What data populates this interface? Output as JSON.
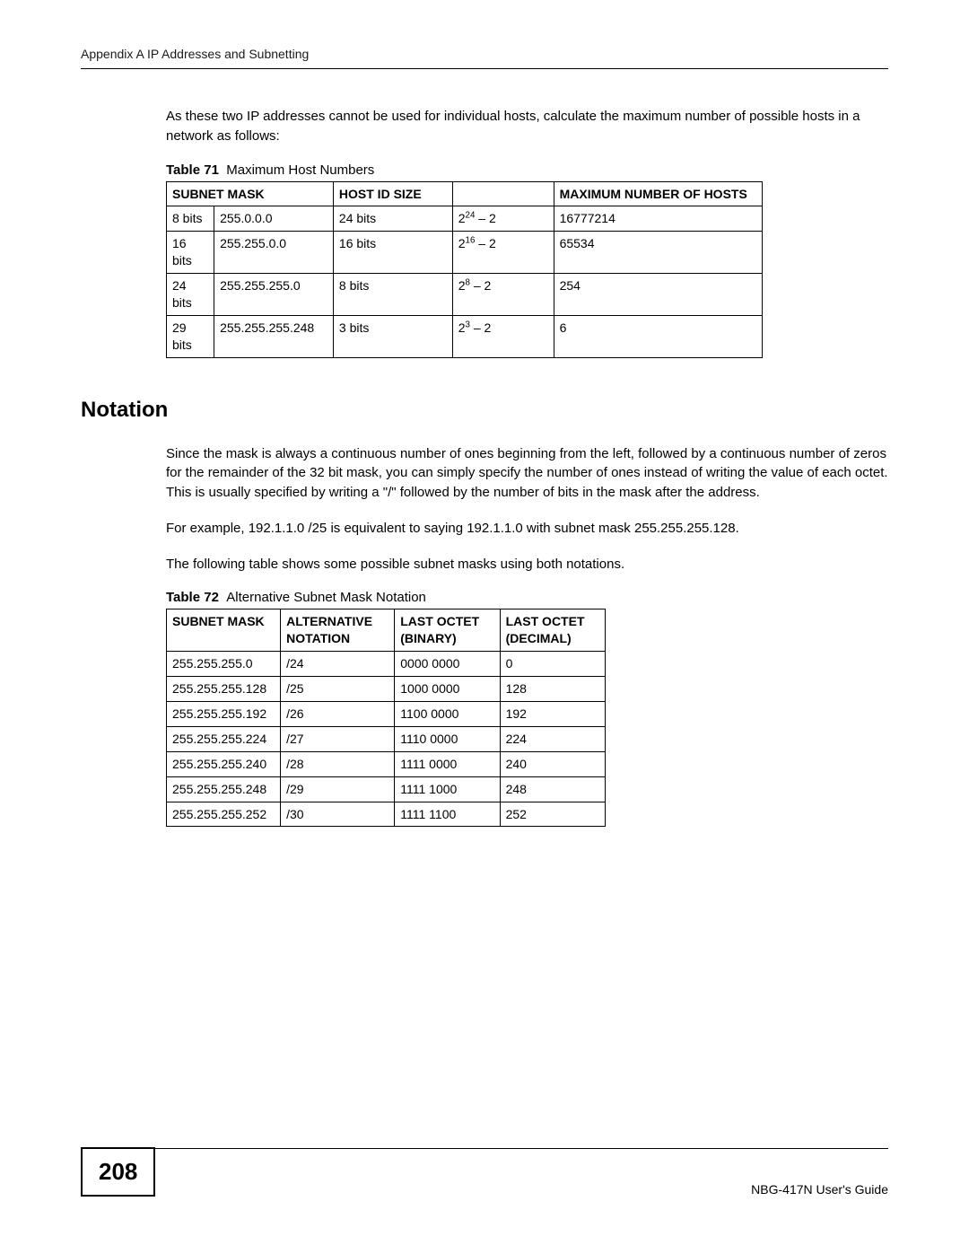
{
  "header": "Appendix A IP Addresses and Subnetting",
  "intro_para": "As these two IP addresses cannot be used for individual hosts, calculate the maximum number of possible hosts in a network as follows:",
  "table71": {
    "label": "Table 71",
    "title": "Maximum Host Numbers",
    "headers": [
      "SUBNET MASK",
      "HOST ID SIZE",
      "",
      "MAXIMUM NUMBER OF HOSTS"
    ],
    "col_widths": [
      "8%",
      "20%",
      "20%",
      "17%",
      "35%"
    ],
    "rows": [
      {
        "bits": "8 bits",
        "mask": "255.0.0.0",
        "hostid": "24 bits",
        "exp": "24",
        "maxhosts": "16777214"
      },
      {
        "bits": "16 bits",
        "mask": "255.255.0.0",
        "hostid": "16 bits",
        "exp": "16",
        "maxhosts": "65534"
      },
      {
        "bits": "24 bits",
        "mask": "255.255.255.0",
        "hostid": "8 bits",
        "exp": "8",
        "maxhosts": "254"
      },
      {
        "bits": "29 bits",
        "mask": "255.255.255.248",
        "hostid": "3 bits",
        "exp": "3",
        "maxhosts": "6"
      }
    ]
  },
  "section_heading": "Notation",
  "notation_p1": "Since the mask is always a continuous number of ones beginning from the left, followed by a continuous number of zeros for the remainder of the 32 bit mask, you can simply specify the number of ones instead of writing the value of each octet. This is usually specified by writing a \"/\" followed by the number of bits in the mask after the address.",
  "notation_p2": "For example, 192.1.1.0 /25 is equivalent to saying 192.1.1.0 with subnet mask 255.255.255.128.",
  "notation_p3": "The following table shows some possible subnet masks using both notations.",
  "table72": {
    "label": "Table 72",
    "title": "Alternative Subnet Mask Notation",
    "headers": [
      "SUBNET MASK",
      "ALTERNATIVE NOTATION",
      "LAST OCTET (BINARY)",
      "LAST OCTET (DECIMAL)"
    ],
    "col_widths": [
      "26%",
      "26%",
      "24%",
      "24%"
    ],
    "rows": [
      {
        "mask": "255.255.255.0",
        "alt": "/24",
        "bin": "0000 0000",
        "dec": "0"
      },
      {
        "mask": "255.255.255.128",
        "alt": "/25",
        "bin": "1000 0000",
        "dec": "128"
      },
      {
        "mask": "255.255.255.192",
        "alt": "/26",
        "bin": "1100 0000",
        "dec": "192"
      },
      {
        "mask": "255.255.255.224",
        "alt": "/27",
        "bin": "1110 0000",
        "dec": "224"
      },
      {
        "mask": "255.255.255.240",
        "alt": "/28",
        "bin": "1111 0000",
        "dec": "240"
      },
      {
        "mask": "255.255.255.248",
        "alt": "/29",
        "bin": "1111 1000",
        "dec": "248"
      },
      {
        "mask": "255.255.255.252",
        "alt": "/30",
        "bin": "1111 1100",
        "dec": "252"
      }
    ]
  },
  "page_number": "208",
  "footer_right": "NBG-417N User's Guide"
}
